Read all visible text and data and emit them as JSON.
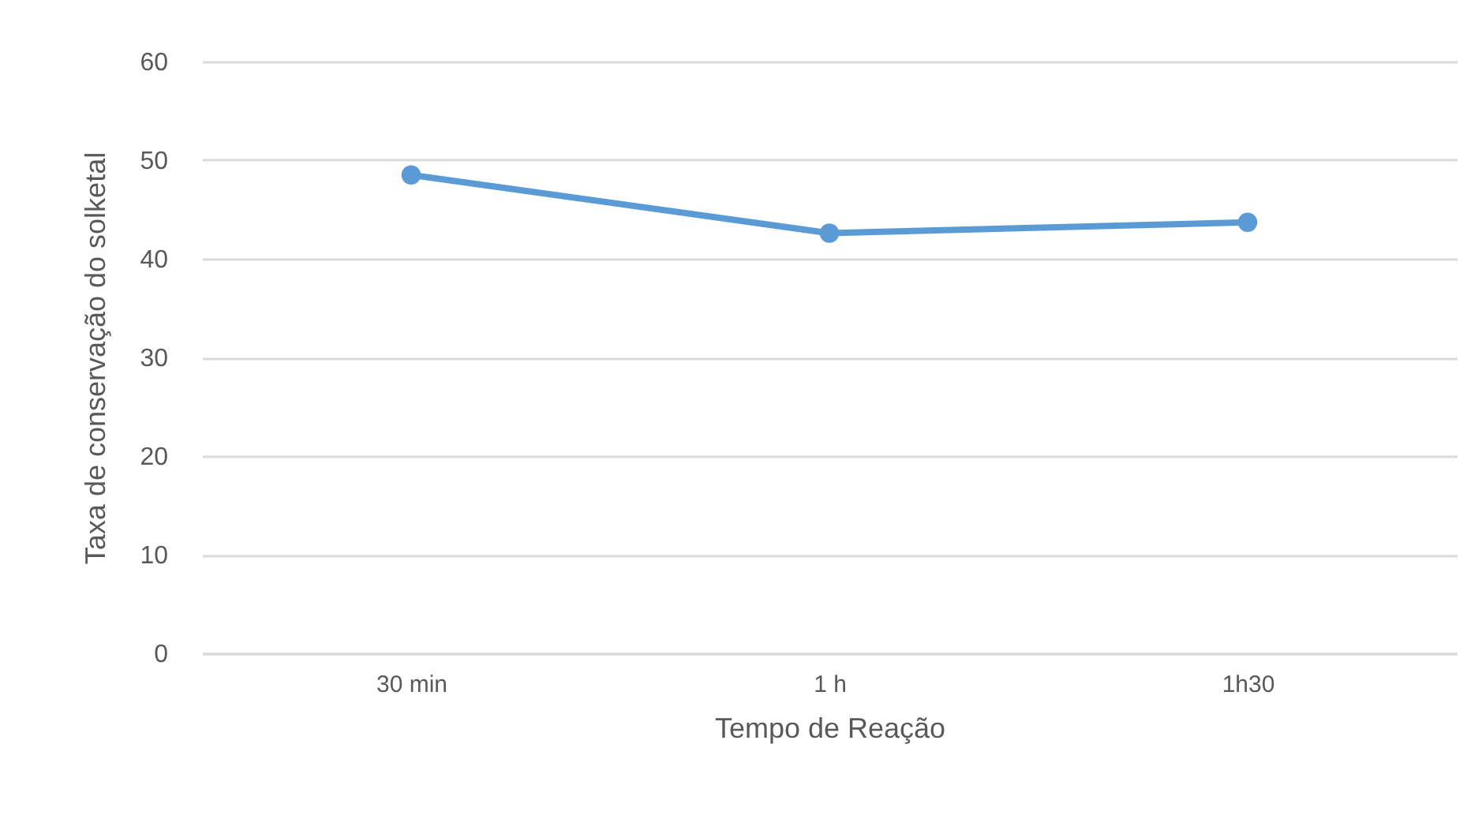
{
  "chart_data": {
    "type": "line",
    "xlabel": "Tempo de Reação",
    "ylabel": "Taxa de conservação do solketal",
    "categories": [
      "30 min",
      "1 h",
      "1h30"
    ],
    "series": [
      {
        "color": "#5b9bd5",
        "values": [
          48.5,
          42.6,
          43.7
        ]
      }
    ],
    "ylim": [
      0,
      60
    ],
    "yticks": [
      0,
      10,
      20,
      30,
      40,
      50,
      60
    ],
    "grid": "y",
    "marker": "circle",
    "line_style": "solid",
    "legend": false
  }
}
